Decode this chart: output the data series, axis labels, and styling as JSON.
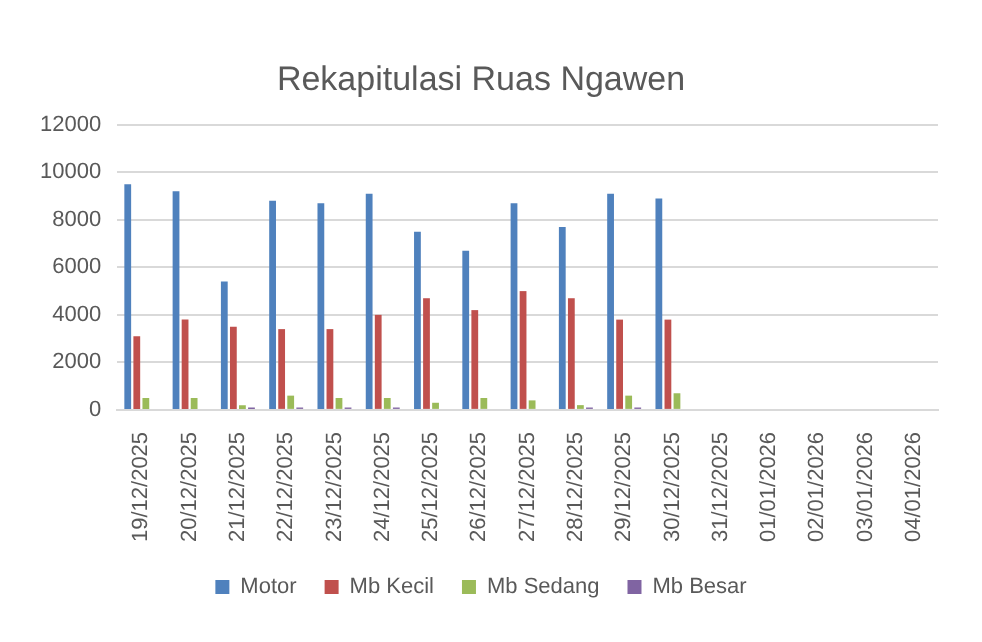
{
  "chart_data": {
    "type": "bar",
    "title": "Rekapitulasi Ruas Ngawen",
    "categories": [
      "19/12/2025",
      "20/12/2025",
      "21/12/2025",
      "22/12/2025",
      "23/12/2025",
      "24/12/2025",
      "25/12/2025",
      "26/12/2025",
      "27/12/2025",
      "28/12/2025",
      "29/12/2025",
      "30/12/2025",
      "31/12/2025",
      "01/01/2026",
      "02/01/2026",
      "03/01/2026",
      "04/01/2026"
    ],
    "series": [
      {
        "name": "Motor",
        "color": "#4f81bd",
        "values": [
          9500,
          9200,
          5400,
          8800,
          8700,
          9100,
          7500,
          6700,
          8700,
          7700,
          9100,
          8900,
          null,
          null,
          null,
          null,
          null
        ]
      },
      {
        "name": "Mb Kecil",
        "color": "#c0504d",
        "values": [
          3100,
          3800,
          3500,
          3400,
          3400,
          4000,
          4700,
          4200,
          5000,
          4700,
          3800,
          3800,
          null,
          null,
          null,
          null,
          null
        ]
      },
      {
        "name": "Mb Sedang",
        "color": "#9bbb59",
        "values": [
          500,
          500,
          200,
          600,
          500,
          500,
          300,
          500,
          400,
          200,
          600,
          700,
          null,
          null,
          null,
          null,
          null
        ]
      },
      {
        "name": "Mb Besar",
        "color": "#8064a2",
        "values": [
          0,
          0,
          100,
          100,
          100,
          100,
          0,
          0,
          0,
          100,
          100,
          0,
          null,
          null,
          null,
          null,
          null
        ]
      }
    ],
    "ylim": [
      0,
      12000
    ],
    "yticks": [
      0,
      2000,
      4000,
      6000,
      8000,
      10000,
      12000
    ],
    "grid": "y",
    "legend": "bottom"
  }
}
